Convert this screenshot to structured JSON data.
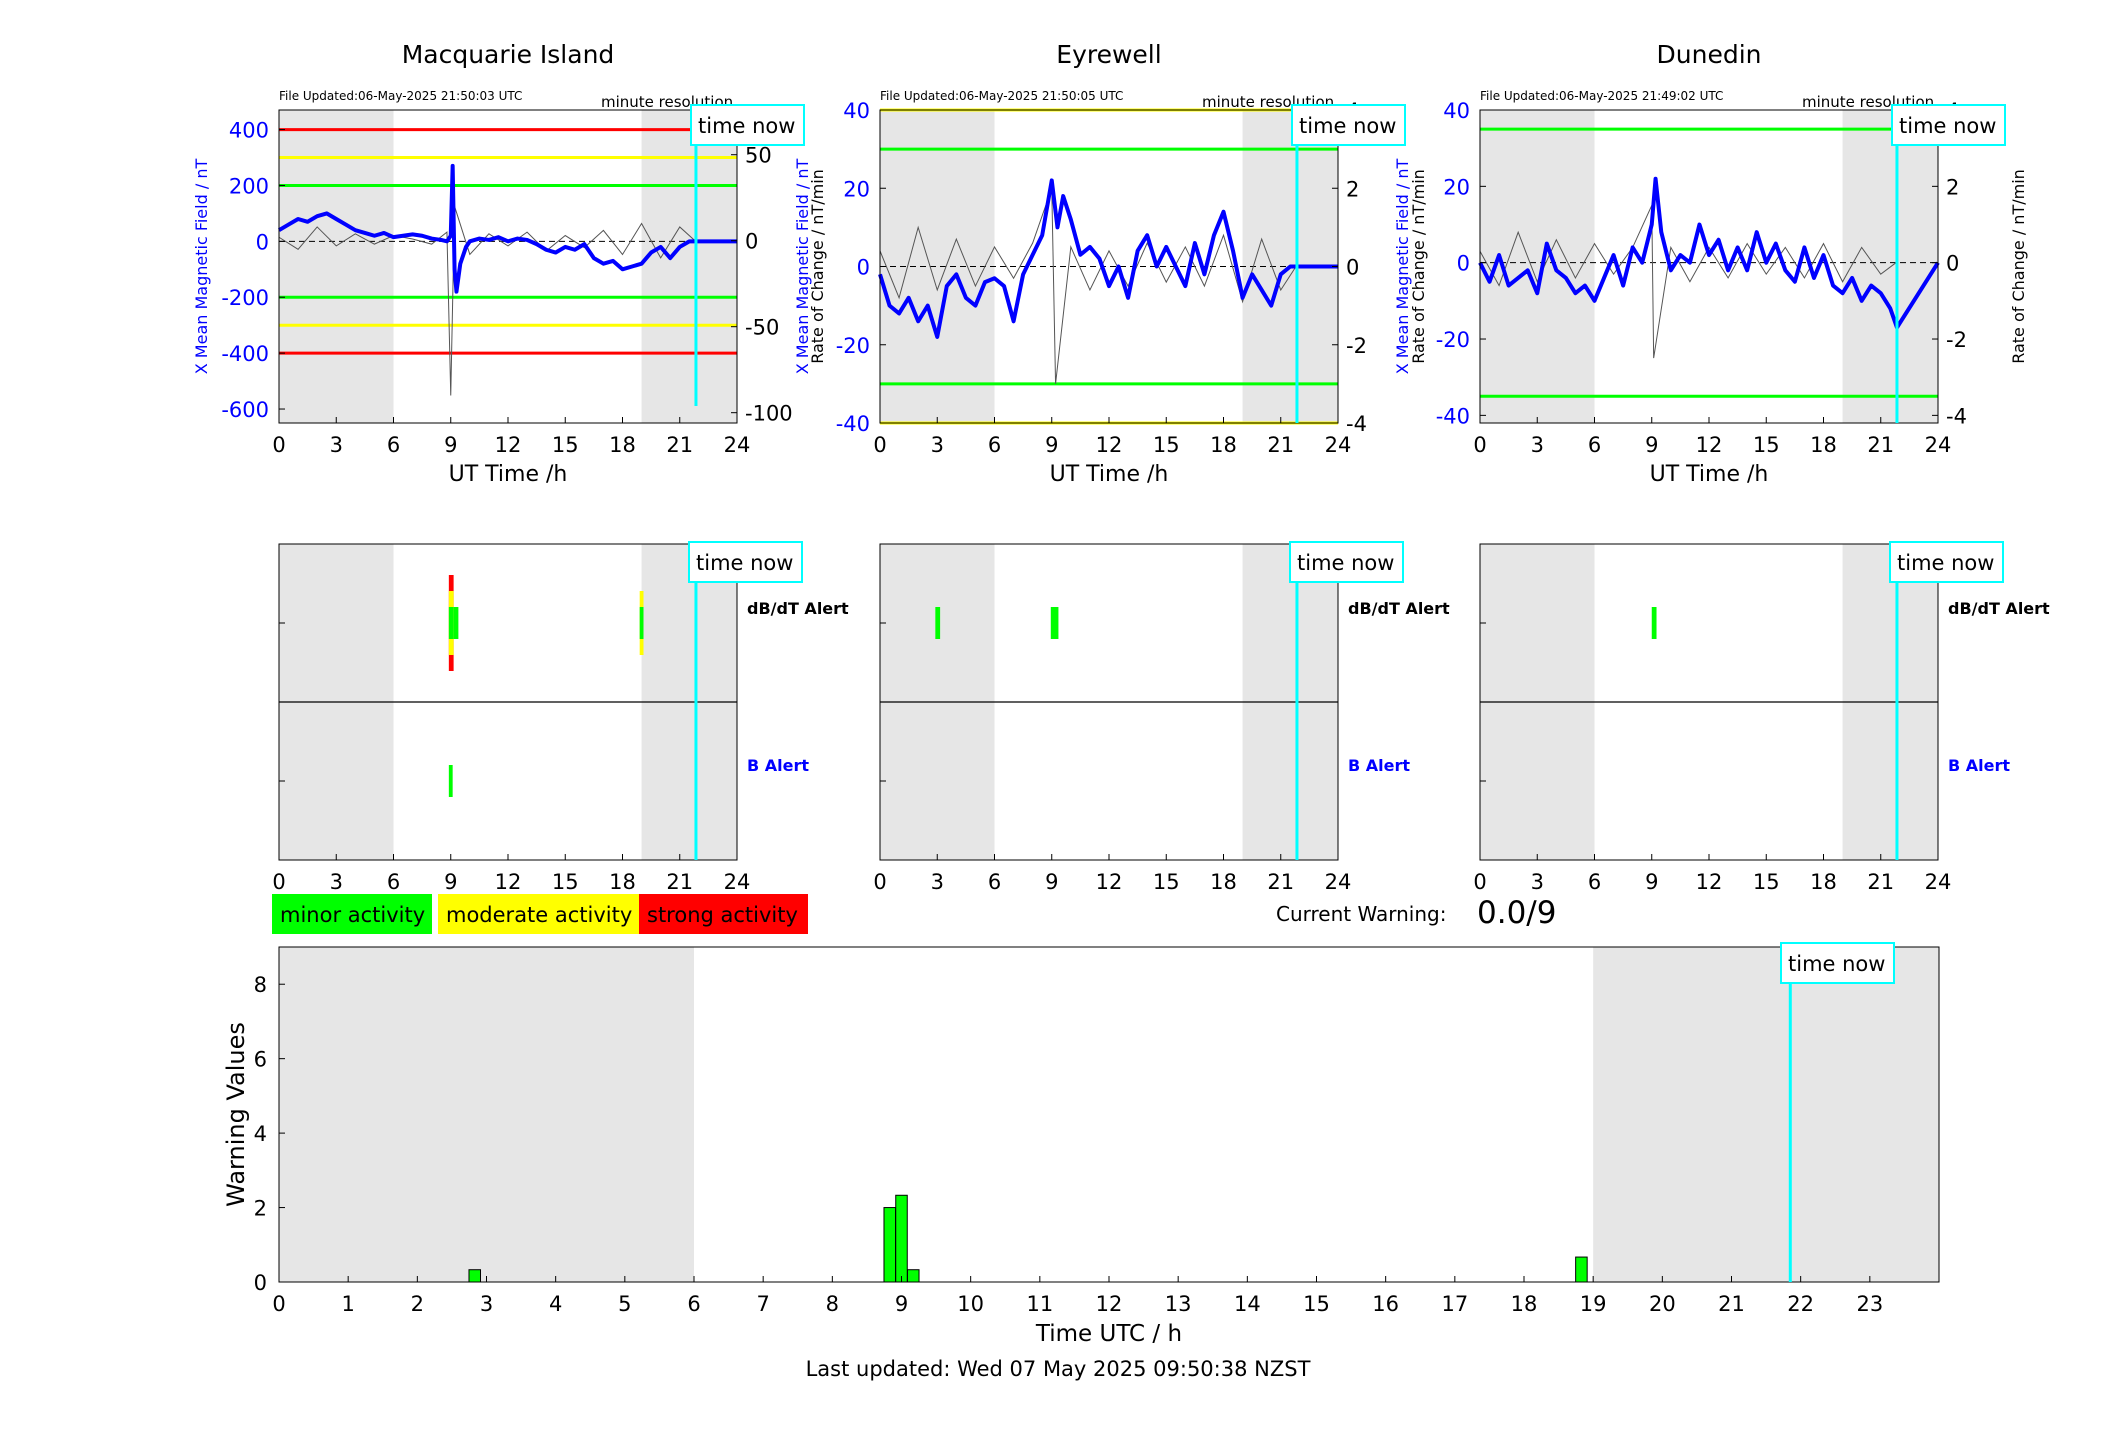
{
  "colors": {
    "blue": "#0000ff",
    "red": "#ff0000",
    "yellow": "#ffff00",
    "green": "#00ff00",
    "cyan": "#00ffff",
    "night_shade": "#e6e6e6"
  },
  "stations": [
    {
      "title": "Macquarie Island",
      "file_updated": "File Updated:06-May-2025 21:50:03 UTC",
      "resolution": "minute resolution",
      "ylabel_left": "X Mean Magnetic Field / nT",
      "ylabel_right": "Rate of Change / nT/min",
      "xlabel": "UT Time /h"
    },
    {
      "title": "Eyrewell",
      "file_updated": "File Updated:06-May-2025 21:50:05 UTC",
      "resolution": "minute resolution",
      "ylabel_left": "X Mean Magnetic Field / nT",
      "ylabel_right": "Rate of Change / nT/min",
      "xlabel": "UT Time /h"
    },
    {
      "title": "Dunedin",
      "file_updated": "File Updated:06-May-2025 21:49:02 UTC",
      "resolution": "minute resolution",
      "ylabel_left": "X Mean Magnetic Field / nT",
      "ylabel_right": "Rate of Change / nT/min",
      "xlabel": "UT Time /h"
    }
  ],
  "time_now_label": "time now",
  "alert_labels": {
    "dbdt": "dB/dT Alert",
    "b": "B Alert"
  },
  "legend": {
    "minor": "minor activity",
    "moderate": "moderate activity",
    "strong": "strong activity"
  },
  "current_warning": {
    "label": "Current Warning:",
    "value": "0.0/9"
  },
  "footer": "Last updated: Wed 07 May 2025 09:50:38 NZST",
  "chart_data": [
    {
      "type": "line",
      "station": "Macquarie Island",
      "xlim": [
        0,
        24
      ],
      "x_ticks": [
        0,
        3,
        6,
        9,
        12,
        15,
        18,
        21,
        24
      ],
      "ylim_left": [
        -650,
        470
      ],
      "y_ticks_left": [
        400,
        200,
        0,
        -200,
        -400,
        -600
      ],
      "ylim_right": [
        -106,
        76
      ],
      "y_ticks_right": [
        50,
        0,
        -50,
        -100
      ],
      "time_now": 21.85,
      "night_shading": [
        [
          0,
          6
        ],
        [
          19,
          24
        ]
      ],
      "thresholds": [
        {
          "level": "strong",
          "value": 400
        },
        {
          "level": "moderate",
          "value": 300
        },
        {
          "level": "minor",
          "value": 200
        },
        {
          "level": "minor",
          "value": -200
        },
        {
          "level": "moderate",
          "value": -300
        },
        {
          "level": "strong",
          "value": -400
        }
      ],
      "x_mean_field": {
        "x": [
          0,
          0.5,
          1,
          1.5,
          2,
          2.5,
          3,
          3.5,
          4,
          4.5,
          5,
          5.5,
          6,
          6.5,
          7,
          7.5,
          8,
          8.5,
          8.8,
          9,
          9.1,
          9.2,
          9.3,
          9.5,
          9.8,
          10,
          10.5,
          11,
          11.5,
          12,
          12.5,
          13,
          13.5,
          14,
          14.5,
          15,
          15.5,
          16,
          16.5,
          17,
          17.5,
          18,
          18.5,
          19,
          19.5,
          20,
          20.5,
          21,
          21.5,
          22,
          24
        ],
        "y": [
          40,
          60,
          80,
          70,
          90,
          100,
          80,
          60,
          40,
          30,
          20,
          30,
          15,
          20,
          25,
          20,
          10,
          5,
          0,
          20,
          270,
          -100,
          -180,
          -80,
          -20,
          0,
          10,
          5,
          15,
          0,
          10,
          5,
          -10,
          -30,
          -40,
          -20,
          -30,
          -10,
          -60,
          -80,
          -70,
          -100,
          -90,
          -80,
          -40,
          -20,
          -60,
          -20,
          0,
          0,
          0
        ]
      },
      "rate_of_change": {
        "x": [
          0,
          1,
          2,
          3,
          4,
          5,
          6,
          7,
          8,
          8.8,
          9,
          9.2,
          10,
          11,
          12,
          13,
          14,
          15,
          16,
          17,
          18,
          19,
          20,
          21,
          21.8
        ],
        "y": [
          2,
          -5,
          8,
          -3,
          4,
          -2,
          3,
          1,
          -2,
          5,
          -90,
          20,
          -8,
          4,
          -3,
          5,
          -6,
          3,
          -4,
          6,
          -8,
          10,
          -10,
          8,
          0
        ]
      }
    },
    {
      "type": "line",
      "station": "Eyrewell",
      "xlim": [
        0,
        24
      ],
      "x_ticks": [
        0,
        3,
        6,
        9,
        12,
        15,
        18,
        21,
        24
      ],
      "ylim_left": [
        -40,
        40
      ],
      "y_ticks_left": [
        40,
        20,
        0,
        -20,
        -40
      ],
      "ylim_right": [
        -4,
        4
      ],
      "y_ticks_right": [
        4,
        2,
        0,
        -2,
        -4
      ],
      "time_now": 21.85,
      "night_shading": [
        [
          0,
          6
        ],
        [
          19,
          24
        ]
      ],
      "thresholds": [
        {
          "level": "moderate",
          "value": 40
        },
        {
          "level": "minor",
          "value": 30
        },
        {
          "level": "minor",
          "value": -30
        },
        {
          "level": "moderate",
          "value": -40
        }
      ],
      "x_mean_field": {
        "x": [
          0,
          0.5,
          1,
          1.5,
          2,
          2.5,
          3,
          3.5,
          4,
          4.5,
          5,
          5.5,
          6,
          6.5,
          7,
          7.5,
          8,
          8.5,
          9,
          9.3,
          9.6,
          10,
          10.5,
          11,
          11.5,
          12,
          12.5,
          13,
          13.5,
          14,
          14.5,
          15,
          15.5,
          16,
          16.5,
          17,
          17.5,
          18,
          18.5,
          19,
          19.5,
          20,
          20.5,
          21,
          21.5,
          22,
          24
        ],
        "y": [
          -2,
          -10,
          -12,
          -8,
          -14,
          -10,
          -18,
          -5,
          -2,
          -8,
          -10,
          -4,
          -3,
          -5,
          -14,
          -2,
          3,
          8,
          22,
          10,
          18,
          12,
          3,
          5,
          2,
          -5,
          0,
          -8,
          4,
          8,
          0,
          5,
          0,
          -5,
          6,
          -2,
          8,
          14,
          4,
          -8,
          -2,
          -6,
          -10,
          -2,
          0,
          0,
          0
        ]
      },
      "rate_of_change": {
        "x": [
          0,
          1,
          2,
          3,
          4,
          5,
          6,
          7,
          8,
          9,
          9.2,
          10,
          11,
          12,
          13,
          14,
          15,
          16,
          17,
          18,
          19,
          20,
          21,
          21.8
        ],
        "y": [
          0.4,
          -0.8,
          1,
          -0.6,
          0.7,
          -0.5,
          0.5,
          -0.3,
          0.6,
          2,
          -3,
          0.5,
          -0.6,
          0.4,
          -0.5,
          0.6,
          -0.4,
          0.5,
          -0.5,
          0.8,
          -0.9,
          0.7,
          -0.6,
          0
        ]
      }
    },
    {
      "type": "line",
      "station": "Dunedin",
      "xlim": [
        0,
        24
      ],
      "x_ticks": [
        0,
        3,
        6,
        9,
        12,
        15,
        18,
        21,
        24
      ],
      "ylim_left": [
        -42,
        40
      ],
      "y_ticks_left": [
        40,
        20,
        0,
        -20,
        -40
      ],
      "ylim_right": [
        -4.2,
        4
      ],
      "y_ticks_right": [
        4,
        2,
        0,
        -2,
        -4
      ],
      "time_now": 21.85,
      "night_shading": [
        [
          0,
          6
        ],
        [
          19,
          24
        ]
      ],
      "thresholds": [
        {
          "level": "minor",
          "value": 35
        },
        {
          "level": "minor",
          "value": -35
        }
      ],
      "x_mean_field": {
        "x": [
          0,
          0.5,
          1,
          1.5,
          2,
          2.5,
          3,
          3.5,
          4,
          4.5,
          5,
          5.5,
          6,
          6.5,
          7,
          7.5,
          8,
          8.5,
          9,
          9.2,
          9.5,
          10,
          10.5,
          11,
          11.5,
          12,
          12.5,
          13,
          13.5,
          14,
          14.5,
          15,
          15.5,
          16,
          16.5,
          17,
          17.5,
          18,
          18.5,
          19,
          19.5,
          20,
          20.5,
          21,
          21.5,
          21.85,
          24
        ],
        "y": [
          0,
          -5,
          2,
          -6,
          -4,
          -2,
          -8,
          5,
          -2,
          -4,
          -8,
          -6,
          -10,
          -4,
          2,
          -6,
          4,
          0,
          10,
          22,
          8,
          -2,
          2,
          0,
          10,
          2,
          6,
          -2,
          4,
          -2,
          8,
          0,
          5,
          -2,
          -5,
          4,
          -4,
          2,
          -6,
          -8,
          -4,
          -10,
          -6,
          -8,
          -12,
          -17,
          0
        ]
      },
      "rate_of_change": {
        "x": [
          0,
          1,
          2,
          3,
          4,
          5,
          6,
          7,
          8,
          9,
          9.1,
          10,
          11,
          12,
          13,
          14,
          15,
          16,
          17,
          18,
          19,
          20,
          21,
          21.8
        ],
        "y": [
          0.3,
          -0.6,
          0.8,
          -0.5,
          0.6,
          -0.4,
          0.5,
          -0.3,
          0.4,
          1.5,
          -2.5,
          0.4,
          -0.5,
          0.4,
          -0.4,
          0.5,
          -0.3,
          0.4,
          -0.4,
          0.5,
          -0.5,
          0.4,
          -0.3,
          0
        ]
      }
    },
    {
      "type": "table",
      "station": "Macquarie Island",
      "rows": [
        "dB/dT Alert",
        "B Alert"
      ],
      "xlim": [
        0,
        24
      ],
      "time_now": 21.85,
      "night_shading": [
        [
          0,
          6
        ],
        [
          19,
          24
        ]
      ],
      "dbdt_events": [
        {
          "t_start": 8.9,
          "t_end": 9.15,
          "level": "strong"
        },
        {
          "t_start": 9.15,
          "t_end": 9.4,
          "level": "minor"
        },
        {
          "t_start": 18.9,
          "t_end": 19.1,
          "level": "moderate"
        }
      ],
      "b_events": [
        {
          "t_start": 8.9,
          "t_end": 9.1,
          "level": "minor"
        }
      ]
    },
    {
      "type": "table",
      "station": "Eyrewell",
      "rows": [
        "dB/dT Alert",
        "B Alert"
      ],
      "xlim": [
        0,
        24
      ],
      "time_now": 21.85,
      "night_shading": [
        [
          0,
          6
        ],
        [
          19,
          24
        ]
      ],
      "dbdt_events": [
        {
          "t_start": 2.9,
          "t_end": 3.15,
          "level": "minor"
        },
        {
          "t_start": 8.95,
          "t_end": 9.35,
          "level": "minor"
        }
      ],
      "b_events": []
    },
    {
      "type": "table",
      "station": "Dunedin",
      "rows": [
        "dB/dT Alert",
        "B Alert"
      ],
      "xlim": [
        0,
        24
      ],
      "time_now": 21.85,
      "night_shading": [
        [
          0,
          6
        ],
        [
          19,
          24
        ]
      ],
      "dbdt_events": [
        {
          "t_start": 9.0,
          "t_end": 9.25,
          "level": "minor"
        }
      ],
      "b_events": []
    },
    {
      "type": "bar",
      "xlabel": "Time UTC / h",
      "ylabel": "Warning Values",
      "xlim": [
        0,
        24
      ],
      "x_ticks": [
        0,
        1,
        2,
        3,
        4,
        5,
        6,
        7,
        8,
        9,
        10,
        11,
        12,
        13,
        14,
        15,
        16,
        17,
        18,
        19,
        20,
        21,
        22,
        23
      ],
      "ylim": [
        0,
        9
      ],
      "y_ticks": [
        0,
        2,
        4,
        6,
        8
      ],
      "time_now": 21.85,
      "night_shading": [
        [
          0,
          6
        ],
        [
          19,
          24
        ]
      ],
      "bars": [
        {
          "x": 2.83,
          "value": 0.33
        },
        {
          "x": 8.83,
          "value": 2.0
        },
        {
          "x": 9.0,
          "value": 2.33
        },
        {
          "x": 9.17,
          "value": 0.33
        },
        {
          "x": 18.83,
          "value": 0.67
        }
      ]
    }
  ]
}
